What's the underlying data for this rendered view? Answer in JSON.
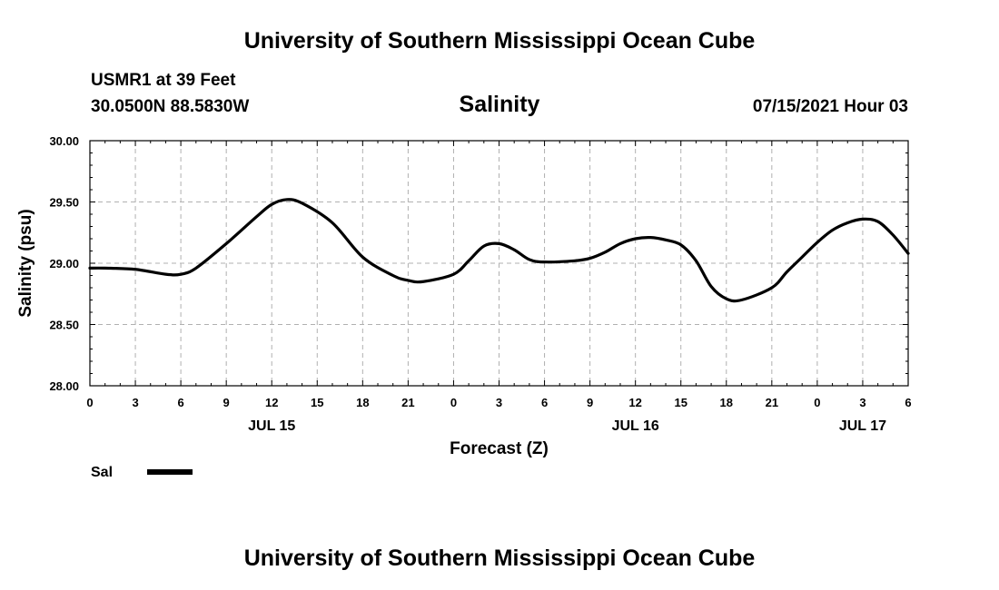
{
  "header": {
    "title_top": "University of Southern Mississippi Ocean Cube",
    "station": "USMR1 at 39 Feet",
    "coords": "30.0500N  88.5830W",
    "chart_title": "Salinity",
    "datetime": "07/15/2021 Hour 03",
    "title_bottom": "University of Southern Mississippi Ocean Cube"
  },
  "chart_data": {
    "type": "line",
    "title": "Salinity",
    "xlabel": "Forecast (Z)",
    "ylabel": "Salinity (psu)",
    "ylim": [
      28.0,
      30.0
    ],
    "xlim": [
      0,
      54
    ],
    "grid": true,
    "yticks": [
      28.0,
      28.5,
      29.0,
      29.5,
      30.0
    ],
    "ytick_labels": [
      "28.00",
      "28.50",
      "29.00",
      "29.50",
      "30.00"
    ],
    "xticks": [
      0,
      3,
      6,
      9,
      12,
      15,
      18,
      21,
      24,
      27,
      30,
      33,
      36,
      39,
      42,
      45,
      48,
      51,
      54
    ],
    "xtick_labels": [
      "0",
      "3",
      "6",
      "9",
      "12",
      "15",
      "18",
      "21",
      "0",
      "3",
      "6",
      "9",
      "12",
      "15",
      "18",
      "21",
      "0",
      "3",
      "6"
    ],
    "date_labels": [
      {
        "x": 12,
        "label": "JUL 15"
      },
      {
        "x": 36,
        "label": "JUL 16"
      },
      {
        "x": 51,
        "label": "JUL 17"
      }
    ],
    "series": [
      {
        "name": "Sal",
        "color": "#000000",
        "x": [
          0,
          1,
          3,
          5,
          6,
          7,
          9,
          11,
          12,
          13,
          14,
          16,
          18,
          20,
          21,
          22,
          24,
          25,
          26,
          27,
          28,
          29,
          30,
          32,
          33,
          34,
          35,
          36,
          37,
          38,
          39,
          40,
          41,
          42,
          43,
          45,
          46,
          47,
          48,
          49,
          50,
          51,
          52,
          53,
          54
        ],
        "values": [
          28.96,
          28.96,
          28.95,
          28.91,
          28.91,
          28.96,
          29.16,
          29.38,
          29.48,
          29.52,
          29.49,
          29.33,
          29.05,
          28.9,
          28.86,
          28.85,
          28.91,
          29.02,
          29.14,
          29.16,
          29.11,
          29.03,
          29.01,
          29.02,
          29.04,
          29.09,
          29.16,
          29.2,
          29.21,
          29.19,
          29.15,
          29.02,
          28.81,
          28.71,
          28.7,
          28.8,
          28.93,
          29.05,
          29.17,
          29.27,
          29.33,
          29.36,
          29.34,
          29.23,
          29.08
        ]
      }
    ],
    "legend": [
      {
        "label": "Sal",
        "color": "#000000"
      }
    ]
  }
}
